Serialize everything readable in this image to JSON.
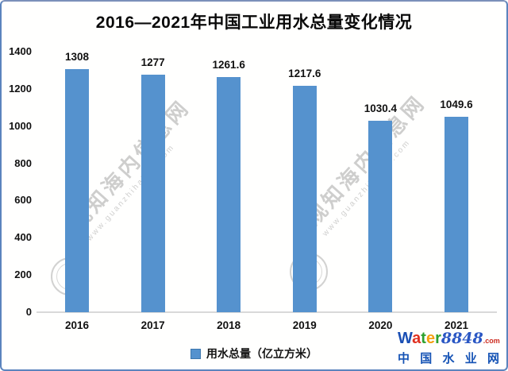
{
  "chart_data": {
    "type": "bar",
    "title": "2016—2021年中国工业用水总量变化情况",
    "categories": [
      "2016",
      "2017",
      "2018",
      "2019",
      "2020",
      "2021"
    ],
    "values": [
      1308,
      1277,
      1261.6,
      1217.6,
      1030.4,
      1049.6
    ],
    "xlabel": "",
    "ylabel": "",
    "ylim": [
      0,
      1400
    ],
    "yticks": [
      0,
      200,
      400,
      600,
      800,
      1000,
      1200,
      1400
    ],
    "grid": false,
    "legend_position": "bottom",
    "legend": [
      "用水总量（亿立方米）"
    ],
    "bar_color": "#5592ce"
  },
  "legend": {
    "label": "用水总量（亿立方米）"
  },
  "watermark": {
    "text": "观知海内信息网",
    "subtext": "www.guanzhihainei.com"
  },
  "logo": {
    "letters": [
      {
        "char": "W",
        "color": "#1a4fb4"
      },
      {
        "char": "a",
        "color": "#e03020"
      },
      {
        "char": "t",
        "color": "#2ea12e"
      },
      {
        "char": "e",
        "color": "#f5a011"
      },
      {
        "char": "r",
        "color": "#2ea12e"
      }
    ],
    "number": "8848",
    "tld": ".com",
    "cn_name": "中国水业网"
  },
  "colors": {
    "bar": "#5592ce",
    "border": "#5b84bd",
    "axis_line": "#d9d9d9",
    "text": "#111111",
    "watermark": "#7d7d7d",
    "logo_blue": "#1553b5",
    "logo_red": "#cc2a1e"
  }
}
